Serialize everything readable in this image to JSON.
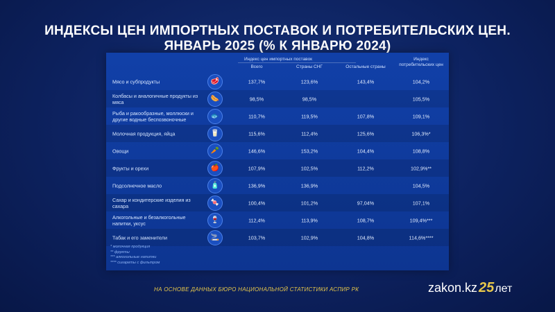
{
  "title": {
    "line1": "ИНДЕКСЫ ЦЕН ИМПОРТНЫХ ПОСТАВОК И ПОТРЕБИТЕЛЬСКИХ ЦЕН.",
    "line2": "ЯНВАРЬ 2025 (% К ЯНВАРЮ 2024)"
  },
  "table": {
    "group_header": "Индекс цен импортных поставок",
    "columns": [
      "Всего",
      "Страны СНГ",
      "Остальные страны"
    ],
    "cpi_header_line1": "Индекс",
    "cpi_header_line2": "потребительских цен",
    "rows": [
      {
        "name": "Мясо и субпродукты",
        "icon": "meat-icon",
        "glyph": "🥩",
        "total": "137,7%",
        "cis": "123,6%",
        "other": "143,4%",
        "cpi": "104,2%"
      },
      {
        "name": "Колбасы и аналогичные продукты из мяса",
        "icon": "sausage-icon",
        "glyph": "🌭",
        "total": "98,5%",
        "cis": "98,5%",
        "other": "",
        "cpi": "105,5%"
      },
      {
        "name": "Рыба и ракообразные, моллюски и другие водные беспозвоночные",
        "icon": "fish-icon",
        "glyph": "🐟",
        "total": "110,7%",
        "cis": "119,5%",
        "other": "107,8%",
        "cpi": "109,1%"
      },
      {
        "name": "Молочная продукция, яйца",
        "icon": "dairy-eggs-icon",
        "glyph": "🥛",
        "total": "115,6%",
        "cis": "112,4%",
        "other": "125,6%",
        "cpi": "106,3%*"
      },
      {
        "name": "Овощи",
        "icon": "vegetables-icon",
        "glyph": "🥕",
        "total": "146,6%",
        "cis": "153,2%",
        "other": "104,4%",
        "cpi": "108,8%"
      },
      {
        "name": "Фрукты и орехи",
        "icon": "fruits-nuts-icon",
        "glyph": "🍎",
        "total": "107,9%",
        "cis": "102,5%",
        "other": "112,2%",
        "cpi": "102,9%**"
      },
      {
        "name": "Подсолнечное масло",
        "icon": "oil-bottle-icon",
        "glyph": "🧴",
        "total": "136,9%",
        "cis": "136,9%",
        "other": "",
        "cpi": "104,5%"
      },
      {
        "name": "Сахар и кондитерские изделия из сахара",
        "icon": "sugar-icon",
        "glyph": "🍬",
        "total": "100,4%",
        "cis": "101,2%",
        "other": "97,04%",
        "cpi": "107,1%"
      },
      {
        "name": "Алкогольные и безалкогольные напитки, уксус",
        "icon": "drinks-icon",
        "glyph": "🍷",
        "total": "112,4%",
        "cis": "113,9%",
        "other": "108,7%",
        "cpi": "109,4%***"
      },
      {
        "name": "Табак и его заменители",
        "icon": "tobacco-icon",
        "glyph": "🚬",
        "total": "103,7%",
        "cis": "102,9%",
        "other": "104,8%",
        "cpi": "114,6%****"
      }
    ],
    "notes": [
      "* молочная продукция",
      "** фрукты",
      "*** алкогольные напитки",
      "**** сигареты с фильтром"
    ]
  },
  "footer": {
    "source": "НА ОСНОВЕ ДАННЫХ БЮРО НАЦИОНАЛЬНОЙ СТАТИСТИКИ АСПИР РК",
    "logo_site": "zakon.kz",
    "logo_number": "25",
    "logo_suffix": "лет"
  }
}
